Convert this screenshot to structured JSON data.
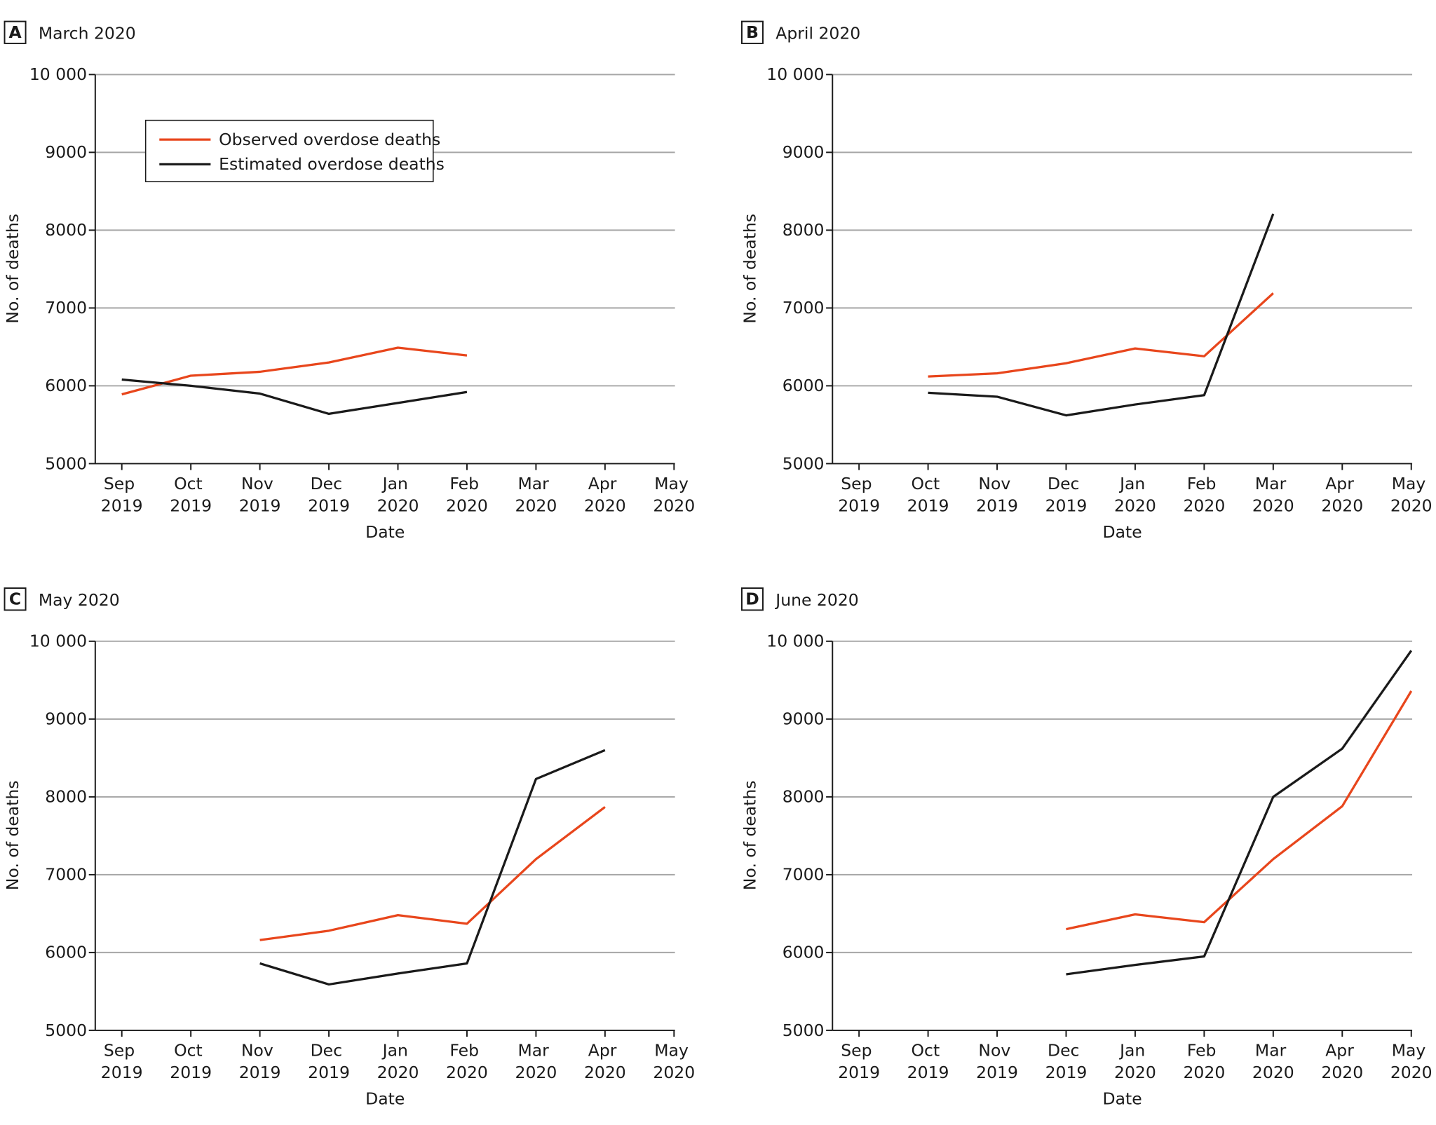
{
  "chart_data": [
    {
      "type": "line",
      "panel": "A",
      "title": "March 2020",
      "xlabel": "Date",
      "ylabel": "No. of deaths",
      "categories": [
        "Sep 2019",
        "Oct 2019",
        "Nov 2019",
        "Dec 2019",
        "Jan 2020",
        "Feb 2020",
        "Mar 2020",
        "Apr 2020",
        "May 2020"
      ],
      "ylim": [
        5000,
        10000
      ],
      "yticks": [
        5000,
        6000,
        7000,
        8000,
        9000,
        {
          "value": 10000,
          "label": "10 000"
        }
      ],
      "grid": true,
      "legend": "upper left",
      "series": [
        {
          "name": "Observed overdose deaths",
          "color": "#e8461c",
          "values": [
            5890,
            6130,
            6180,
            6300,
            6490,
            6390,
            null,
            null,
            null
          ]
        },
        {
          "name": "Estimated overdose deaths",
          "color": "#1a1a1a",
          "values": [
            6080,
            6000,
            5900,
            5640,
            5780,
            5920,
            null,
            null,
            null
          ]
        }
      ]
    },
    {
      "type": "line",
      "panel": "B",
      "title": "April 2020",
      "xlabel": "Date",
      "ylabel": "No. of deaths",
      "categories": [
        "Sep 2019",
        "Oct 2019",
        "Nov 2019",
        "Dec 2019",
        "Jan 2020",
        "Feb 2020",
        "Mar 2020",
        "Apr 2020",
        "May 2020"
      ],
      "ylim": [
        5000,
        10000
      ],
      "yticks": [
        5000,
        6000,
        7000,
        8000,
        9000,
        {
          "value": 10000,
          "label": "10 000"
        }
      ],
      "grid": true,
      "series": [
        {
          "color": "#e8461c",
          "values": [
            null,
            6120,
            6160,
            6290,
            6480,
            6380,
            7190,
            null,
            null
          ]
        },
        {
          "color": "#1a1a1a",
          "values": [
            null,
            5910,
            5860,
            5620,
            5760,
            5880,
            8210,
            null,
            null
          ]
        }
      ]
    },
    {
      "type": "line",
      "panel": "C",
      "title": "May 2020",
      "xlabel": "Date",
      "ylabel": "No. of deaths",
      "categories": [
        "Sep 2019",
        "Oct 2019",
        "Nov 2019",
        "Dec 2019",
        "Jan 2020",
        "Feb 2020",
        "Mar 2020",
        "Apr 2020",
        "May 2020"
      ],
      "ylim": [
        5000,
        10000
      ],
      "yticks": [
        5000,
        6000,
        7000,
        8000,
        9000,
        {
          "value": 10000,
          "label": "10 000"
        }
      ],
      "grid": true,
      "series": [
        {
          "color": "#e8461c",
          "values": [
            null,
            null,
            6160,
            6280,
            6480,
            6370,
            7200,
            7870,
            null
          ]
        },
        {
          "color": "#1a1a1a",
          "values": [
            null,
            null,
            5860,
            5590,
            5730,
            5860,
            8230,
            8600,
            null
          ]
        }
      ]
    },
    {
      "type": "line",
      "panel": "D",
      "title": "June 2020",
      "xlabel": "Date",
      "ylabel": "No. of deaths",
      "categories": [
        "Sep 2019",
        "Oct 2019",
        "Nov 2019",
        "Dec 2019",
        "Jan 2020",
        "Feb 2020",
        "Mar 2020",
        "Apr 2020",
        "May 2020"
      ],
      "ylim": [
        5000,
        10000
      ],
      "yticks": [
        5000,
        6000,
        7000,
        8000,
        9000,
        {
          "value": 10000,
          "label": "10 000"
        }
      ],
      "grid": true,
      "series": [
        {
          "color": "#e8461c",
          "values": [
            null,
            null,
            null,
            6300,
            6490,
            6390,
            7200,
            7880,
            9360
          ]
        },
        {
          "color": "#1a1a1a",
          "values": [
            null,
            null,
            null,
            5720,
            5840,
            5950,
            8000,
            8620,
            9880
          ]
        }
      ]
    }
  ]
}
